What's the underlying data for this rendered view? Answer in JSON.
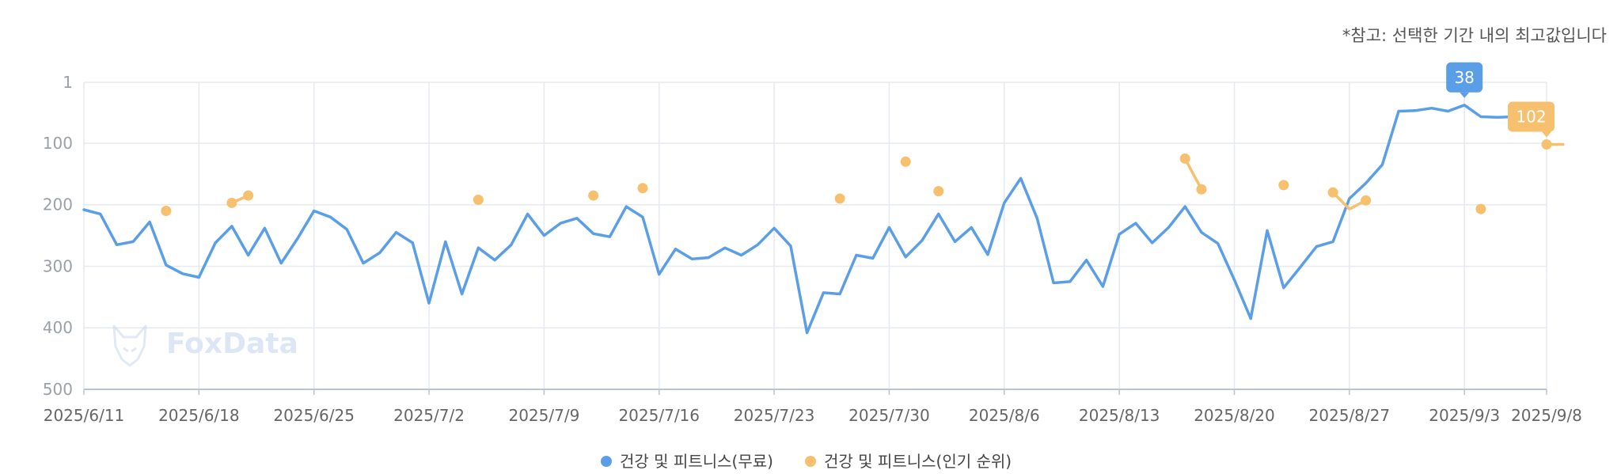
{
  "note": "*참고: 선택한 기간 내의 최고값입니다",
  "watermark": "FoxData",
  "colors": {
    "free": "#5b9ee8",
    "popular": "#f6c06f",
    "grid": "#e6e9ef",
    "axis": "#b8c4d6"
  },
  "chart_data": {
    "type": "line",
    "y_inverted": true,
    "ylim": [
      1,
      500
    ],
    "yticks": [
      1,
      100,
      200,
      300,
      400,
      500
    ],
    "x_start": "2025/6/11",
    "x_end": "2025/9/8",
    "xticks": [
      "2025/6/11",
      "2025/6/18",
      "2025/6/25",
      "2025/7/2",
      "2025/7/9",
      "2025/7/16",
      "2025/7/23",
      "2025/7/30",
      "2025/8/6",
      "2025/8/13",
      "2025/8/20",
      "2025/8/27",
      "2025/9/3",
      "2025/9/8"
    ],
    "legend": {
      "position": "bottom"
    },
    "series": [
      {
        "name": "건강 및 피트니스(무료)",
        "color": "#5b9ee8",
        "points": [
          [
            "2025/6/11",
            208
          ],
          [
            "2025/6/12",
            215
          ],
          [
            "2025/6/13",
            265
          ],
          [
            "2025/6/14",
            260
          ],
          [
            "2025/6/15",
            228
          ],
          [
            "2025/6/16",
            298
          ],
          [
            "2025/6/17",
            312
          ],
          [
            "2025/6/18",
            318
          ],
          [
            "2025/6/19",
            262
          ],
          [
            "2025/6/20",
            235
          ],
          [
            "2025/6/21",
            282
          ],
          [
            "2025/6/22",
            238
          ],
          [
            "2025/6/23",
            295
          ],
          [
            "2025/6/24",
            255
          ],
          [
            "2025/6/25",
            210
          ],
          [
            "2025/6/26",
            220
          ],
          [
            "2025/6/27",
            240
          ],
          [
            "2025/6/28",
            295
          ],
          [
            "2025/6/29",
            278
          ],
          [
            "2025/6/30",
            245
          ],
          [
            "2025/7/1",
            262
          ],
          [
            "2025/7/2",
            360
          ],
          [
            "2025/7/3",
            260
          ],
          [
            "2025/7/4",
            345
          ],
          [
            "2025/7/5",
            270
          ],
          [
            "2025/7/6",
            290
          ],
          [
            "2025/7/7",
            265
          ],
          [
            "2025/7/8",
            215
          ],
          [
            "2025/7/9",
            250
          ],
          [
            "2025/7/10",
            230
          ],
          [
            "2025/7/11",
            222
          ],
          [
            "2025/7/12",
            247
          ],
          [
            "2025/7/13",
            252
          ],
          [
            "2025/7/14",
            203
          ],
          [
            "2025/7/15",
            220
          ],
          [
            "2025/7/16",
            313
          ],
          [
            "2025/7/17",
            272
          ],
          [
            "2025/7/18",
            288
          ],
          [
            "2025/7/19",
            286
          ],
          [
            "2025/7/20",
            270
          ],
          [
            "2025/7/21",
            282
          ],
          [
            "2025/7/22",
            265
          ],
          [
            "2025/7/23",
            238
          ],
          [
            "2025/7/24",
            267
          ],
          [
            "2025/7/25",
            408
          ],
          [
            "2025/7/26",
            343
          ],
          [
            "2025/7/27",
            345
          ],
          [
            "2025/7/28",
            282
          ],
          [
            "2025/7/29",
            287
          ],
          [
            "2025/7/30",
            237
          ],
          [
            "2025/7/31",
            285
          ],
          [
            "2025/8/1",
            258
          ],
          [
            "2025/8/2",
            215
          ],
          [
            "2025/8/3",
            260
          ],
          [
            "2025/8/4",
            237
          ],
          [
            "2025/8/5",
            281
          ],
          [
            "2025/8/6",
            197
          ],
          [
            "2025/8/7",
            157
          ],
          [
            "2025/8/8",
            222
          ],
          [
            "2025/8/9",
            327
          ],
          [
            "2025/8/10",
            325
          ],
          [
            "2025/8/11",
            290
          ],
          [
            "2025/8/12",
            333
          ],
          [
            "2025/8/13",
            248
          ],
          [
            "2025/8/14",
            230
          ],
          [
            "2025/8/15",
            262
          ],
          [
            "2025/8/16",
            237
          ],
          [
            "2025/8/17",
            203
          ],
          [
            "2025/8/18",
            245
          ],
          [
            "2025/8/19",
            263
          ],
          [
            "2025/8/20",
            322
          ],
          [
            "2025/8/21",
            385
          ],
          [
            "2025/8/22",
            242
          ],
          [
            "2025/8/23",
            335
          ],
          [
            "2025/8/24",
            302
          ],
          [
            "2025/8/25",
            268
          ],
          [
            "2025/8/26",
            260
          ],
          [
            "2025/8/27",
            190
          ],
          [
            "2025/8/28",
            165
          ],
          [
            "2025/8/29",
            135
          ],
          [
            "2025/8/30",
            48
          ],
          [
            "2025/8/31",
            47
          ],
          [
            "2025/9/1",
            43
          ],
          [
            "2025/9/2",
            48
          ],
          [
            "2025/9/3",
            38
          ],
          [
            "2025/9/4",
            57
          ],
          [
            "2025/9/5",
            58
          ],
          [
            "2025/9/6",
            57
          ]
        ],
        "peak": {
          "date": "2025/9/3",
          "value": 38,
          "label": "38"
        }
      },
      {
        "name": "건강 및 피트니스(인기 순위)",
        "color": "#f6c06f",
        "segments": [
          [
            [
              "2025/6/16",
              210
            ]
          ],
          [
            [
              "2025/6/20",
              197
            ],
            [
              "2025/6/21",
              185
            ]
          ],
          [
            [
              "2025/7/5",
              192
            ]
          ],
          [
            [
              "2025/7/12",
              185
            ]
          ],
          [
            [
              "2025/7/15",
              173
            ]
          ],
          [
            [
              "2025/7/27",
              190
            ]
          ],
          [
            [
              "2025/7/31",
              130
            ]
          ],
          [
            [
              "2025/8/2",
              178
            ]
          ],
          [
            [
              "2025/8/17",
              125
            ],
            [
              "2025/8/18",
              175
            ]
          ],
          [
            [
              "2025/8/23",
              168
            ]
          ],
          [
            [
              "2025/8/26",
              180
            ],
            [
              "2025/8/27",
              207
            ],
            [
              "2025/8/28",
              193
            ]
          ],
          [
            [
              "2025/9/4",
              207
            ]
          ],
          [
            [
              "2025/9/8",
              102
            ],
            [
              "2025/9/9",
              102
            ]
          ]
        ],
        "peak": {
          "date": "2025/9/8",
          "value": 102,
          "label": "102"
        }
      }
    ]
  }
}
